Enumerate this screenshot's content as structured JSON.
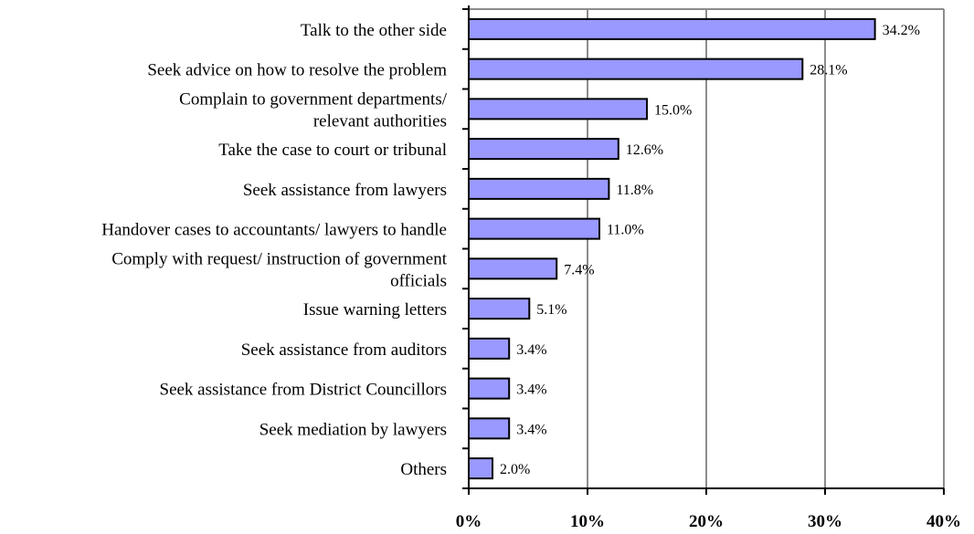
{
  "chart_data": {
    "type": "bar",
    "orientation": "horizontal",
    "categories": [
      [
        "Talk to the other side"
      ],
      [
        "Seek advice on how to resolve the problem"
      ],
      [
        "Complain to government departments/",
        "relevant authorities"
      ],
      [
        "Take the case to court or tribunal"
      ],
      [
        "Seek assistance from lawyers"
      ],
      [
        "Handover cases to accountants/ lawyers to handle"
      ],
      [
        "Comply with request/ instruction of government",
        "officials"
      ],
      [
        "Issue warning letters"
      ],
      [
        "Seek assistance from auditors"
      ],
      [
        "Seek assistance from District Councillors"
      ],
      [
        "Seek mediation by lawyers"
      ],
      [
        "Others"
      ]
    ],
    "values": [
      34.2,
      28.1,
      15.0,
      12.6,
      11.8,
      11.0,
      7.4,
      5.1,
      3.4,
      3.4,
      3.4,
      2.0
    ],
    "value_labels": [
      "34.2%",
      "28.1%",
      "15.0%",
      "12.6%",
      "11.8%",
      "11.0%",
      "7.4%",
      "5.1%",
      "3.4%",
      "3.4%",
      "3.4%",
      "2.0%"
    ],
    "xlim": [
      0,
      40
    ],
    "xticks": [
      0,
      10,
      20,
      30,
      40
    ],
    "xtick_labels": [
      "0%",
      "10%",
      "20%",
      "30%",
      "40%"
    ],
    "grid": "vertical",
    "title": "",
    "xlabel": "",
    "ylabel": "",
    "colors": {
      "bar_fill": "#9999ff",
      "bar_stroke": "#000000",
      "grid": "#8c8c8c",
      "background": "#ffffff"
    }
  }
}
